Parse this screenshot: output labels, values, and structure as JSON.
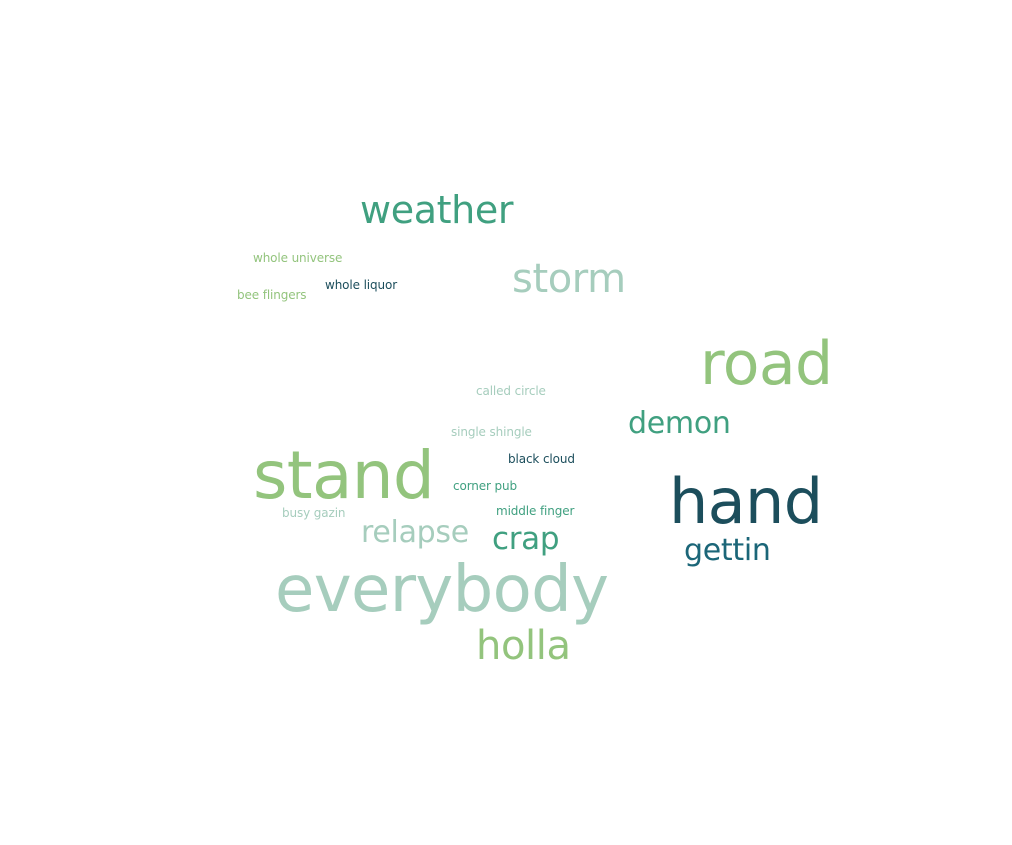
{
  "palette": {
    "green": "#93c47d",
    "teal": "#40a080",
    "mint": "#a6cdbd",
    "dark": "#1c4e5c",
    "blue": "#1b6678"
  },
  "words": {
    "weather": "weather",
    "whole_universe": "whole universe",
    "whole_liquor": "whole liquor",
    "bee_flingers": "bee flingers",
    "storm": "storm",
    "road": "road",
    "called_circle": "called circle",
    "demon": "demon",
    "single_shingle": "single shingle",
    "black_cloud": "black cloud",
    "stand": "stand",
    "corner_pub": "corner pub",
    "hand": "hand",
    "busy_gazin": "busy gazin",
    "middle_finger": "middle finger",
    "relapse": "relapse",
    "crap": "crap",
    "gettin": "gettin",
    "everybody": "everybody",
    "holla": "holla"
  }
}
